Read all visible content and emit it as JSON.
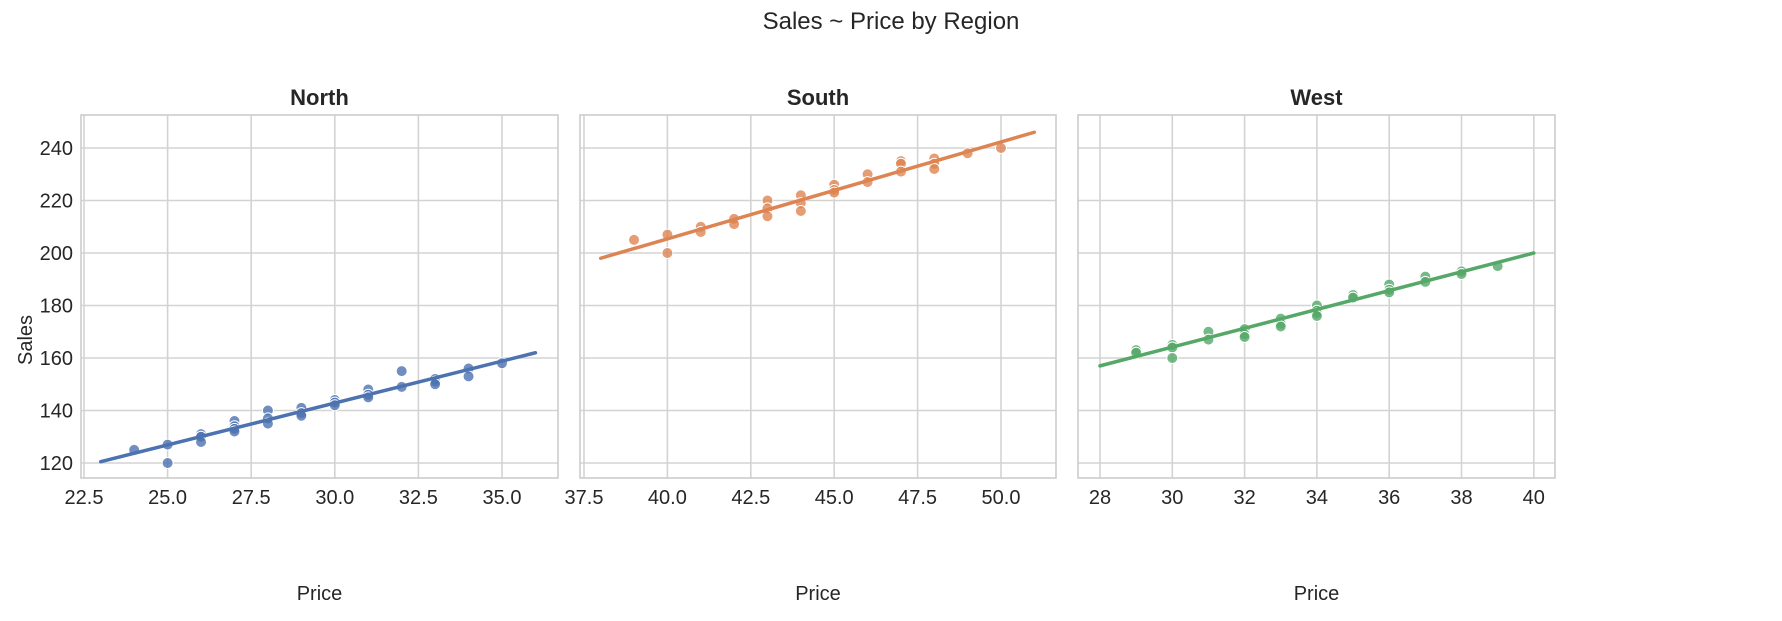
{
  "title": "Sales ~ Price by Region",
  "ylabel": "Sales",
  "xlabel": "Price",
  "colors": {
    "North": "#4c72b0",
    "South": "#dd8452",
    "West": "#55a868",
    "grid": "#d3d3d3",
    "text": "#262626"
  },
  "chart_data": [
    {
      "type": "scatter",
      "title": "North",
      "xlabel": "Price",
      "ylabel": "Sales",
      "xlim": [
        22.5,
        36.5
      ],
      "ylim": [
        115,
        252
      ],
      "xticks": [
        "22.5",
        "25.0",
        "27.5",
        "30.0",
        "32.5",
        "35.0"
      ],
      "yticks": [
        "120",
        "140",
        "160",
        "180",
        "200",
        "220",
        "240"
      ],
      "grid": true,
      "points": [
        [
          24,
          125
        ],
        [
          25,
          127
        ],
        [
          25,
          120
        ],
        [
          26,
          131
        ],
        [
          26,
          130
        ],
        [
          26,
          128
        ],
        [
          27,
          136
        ],
        [
          27,
          134
        ],
        [
          27,
          133
        ],
        [
          27,
          132
        ],
        [
          28,
          140
        ],
        [
          28,
          137
        ],
        [
          28,
          135
        ],
        [
          29,
          141
        ],
        [
          29,
          139
        ],
        [
          29,
          138
        ],
        [
          30,
          144
        ],
        [
          30,
          143
        ],
        [
          30,
          142
        ],
        [
          31,
          148
        ],
        [
          31,
          146
        ],
        [
          31,
          145
        ],
        [
          32,
          155
        ],
        [
          32,
          149
        ],
        [
          33,
          152
        ],
        [
          33,
          151
        ],
        [
          33,
          150
        ],
        [
          34,
          156
        ],
        [
          34,
          153
        ],
        [
          35,
          158
        ]
      ],
      "fit_line": {
        "x": [
          23,
          36
        ],
        "y": [
          120.5,
          162
        ]
      }
    },
    {
      "type": "scatter",
      "title": "South",
      "xlabel": "Price",
      "ylabel": "Sales",
      "xlim": [
        37.5,
        51.5
      ],
      "ylim": [
        115,
        252
      ],
      "xticks": [
        "37.5",
        "40.0",
        "42.5",
        "45.0",
        "47.5",
        "50.0"
      ],
      "yticks": [
        "120",
        "140",
        "160",
        "180",
        "200",
        "220",
        "240"
      ],
      "grid": true,
      "points": [
        [
          39,
          205
        ],
        [
          40,
          207
        ],
        [
          40,
          200
        ],
        [
          41,
          210
        ],
        [
          41,
          208
        ],
        [
          42,
          213
        ],
        [
          42,
          211
        ],
        [
          43,
          220
        ],
        [
          43,
          217
        ],
        [
          43,
          214
        ],
        [
          44,
          222
        ],
        [
          44,
          219
        ],
        [
          44,
          216
        ],
        [
          45,
          226
        ],
        [
          45,
          224
        ],
        [
          45,
          223
        ],
        [
          46,
          230
        ],
        [
          46,
          227
        ],
        [
          47,
          235
        ],
        [
          47,
          234
        ],
        [
          47,
          231
        ],
        [
          48,
          236
        ],
        [
          48,
          234
        ],
        [
          48,
          232
        ],
        [
          49,
          238
        ],
        [
          50,
          240
        ]
      ],
      "fit_line": {
        "x": [
          38,
          51
        ],
        "y": [
          198,
          246
        ]
      }
    },
    {
      "type": "scatter",
      "title": "West",
      "xlabel": "Price",
      "ylabel": "Sales",
      "xlim": [
        27.5,
        40.5
      ],
      "ylim": [
        115,
        252
      ],
      "xticks": [
        "28",
        "30",
        "32",
        "34",
        "36",
        "38",
        "40"
      ],
      "yticks": [
        "120",
        "140",
        "160",
        "180",
        "200",
        "220",
        "240"
      ],
      "grid": true,
      "points": [
        [
          29,
          163
        ],
        [
          29,
          162
        ],
        [
          30,
          165
        ],
        [
          30,
          164
        ],
        [
          30,
          160
        ],
        [
          31,
          170
        ],
        [
          31,
          167
        ],
        [
          32,
          171
        ],
        [
          32,
          169
        ],
        [
          32,
          168
        ],
        [
          33,
          175
        ],
        [
          33,
          173
        ],
        [
          33,
          172
        ],
        [
          34,
          180
        ],
        [
          34,
          178
        ],
        [
          34,
          177
        ],
        [
          34,
          176
        ],
        [
          35,
          184
        ],
        [
          35,
          183
        ],
        [
          36,
          188
        ],
        [
          36,
          186
        ],
        [
          36,
          185
        ],
        [
          37,
          191
        ],
        [
          37,
          189
        ],
        [
          38,
          193
        ],
        [
          38,
          192
        ],
        [
          39,
          195
        ]
      ],
      "fit_line": {
        "x": [
          28,
          40
        ],
        "y": [
          157,
          200
        ]
      }
    }
  ]
}
